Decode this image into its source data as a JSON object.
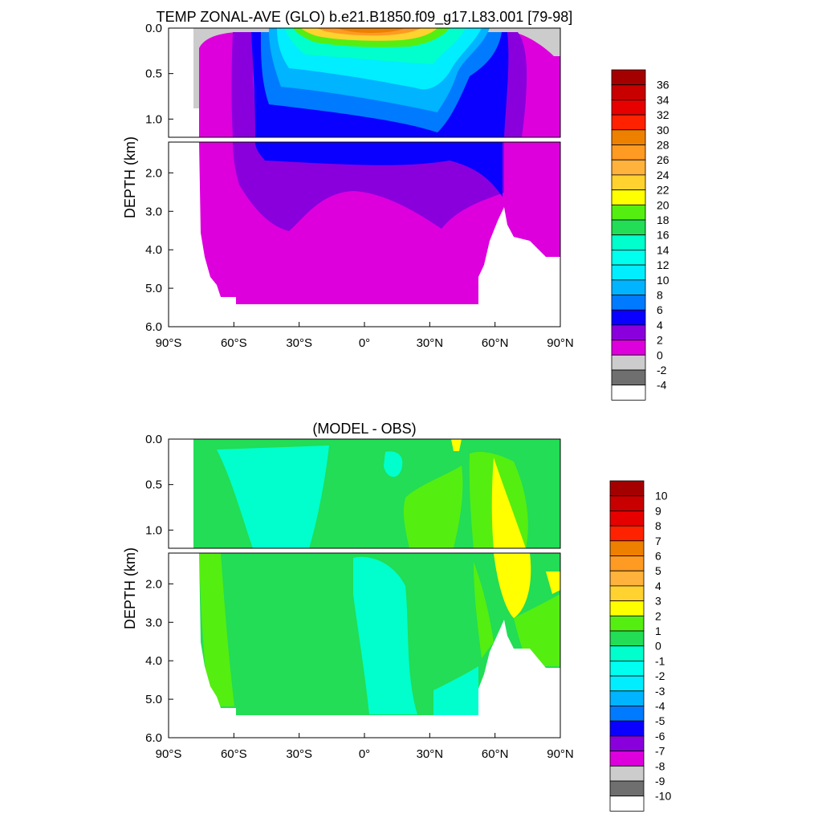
{
  "chart_data": [
    {
      "type": "heatmap",
      "title": "TEMP ZONAL-AVE (GLO) b.e21.B1850.f09_g17.L83.001 [79-98]",
      "ylabel": "DEPTH (km)",
      "xlim": [
        -90,
        90
      ],
      "ylim_upper_km": [
        0.0,
        1.2
      ],
      "ylim_lower_km": [
        1.2,
        6.0
      ],
      "x_ticks": [
        {
          "value": -90,
          "label": "90°S"
        },
        {
          "value": -60,
          "label": "60°S"
        },
        {
          "value": -30,
          "label": "30°S"
        },
        {
          "value": 0,
          "label": "0°"
        },
        {
          "value": 30,
          "label": "30°N"
        },
        {
          "value": 60,
          "label": "60°N"
        },
        {
          "value": 90,
          "label": "90°N"
        }
      ],
      "y_ticks_upper": [
        {
          "value": 0.0,
          "label": "0.0"
        },
        {
          "value": 0.5,
          "label": "0.5"
        },
        {
          "value": 1.0,
          "label": "1.0"
        }
      ],
      "y_ticks_lower": [
        {
          "value": 2.0,
          "label": "2.0"
        },
        {
          "value": 3.0,
          "label": "3.0"
        },
        {
          "value": 4.0,
          "label": "4.0"
        },
        {
          "value": 5.0,
          "label": "5.0"
        },
        {
          "value": 6.0,
          "label": "6.0"
        }
      ],
      "colorbar": {
        "labels": [
          "36",
          "34",
          "32",
          "30",
          "28",
          "26",
          "24",
          "22",
          "20",
          "18",
          "16",
          "14",
          "12",
          "10",
          "8",
          "6",
          "4",
          "2",
          "0",
          "-2",
          "-4"
        ],
        "colors": [
          "#a50000",
          "#c80000",
          "#e60000",
          "#ff2200",
          "#ee8000",
          "#ff9a22",
          "#ffb23c",
          "#ffd230",
          "#ffff00",
          "#55ee11",
          "#22dd55",
          "#00ffcc",
          "#00ffee",
          "#00eeff",
          "#00b4ff",
          "#007bff",
          "#0a00ff",
          "#8a00dd",
          "#dd00dd",
          "#cccccc",
          "#6f6f6f",
          "#ffffff"
        ]
      },
      "field_colors": {
        "warm_core": "#ee8000",
        "surface_28": "#ff9a22",
        "surface_24": "#ffd230",
        "surface_20": "#55ee11",
        "band_14": "#00ffcc",
        "band_12": "#00eeff",
        "band_10": "#00b4ff",
        "band_6": "#007bff",
        "band_4": "#0a00ff",
        "band_2": "#8a00dd",
        "deep_0": "#dd00dd",
        "ice": "#cccccc"
      }
    },
    {
      "type": "heatmap",
      "title": "(MODEL - OBS)",
      "ylabel": "DEPTH (km)",
      "xlim": [
        -90,
        90
      ],
      "ylim_upper_km": [
        0.0,
        1.2
      ],
      "ylim_lower_km": [
        1.2,
        6.0
      ],
      "x_ticks": [
        {
          "value": -90,
          "label": "90°S"
        },
        {
          "value": -60,
          "label": "60°S"
        },
        {
          "value": -30,
          "label": "30°S"
        },
        {
          "value": 0,
          "label": "0°"
        },
        {
          "value": 30,
          "label": "30°N"
        },
        {
          "value": 60,
          "label": "60°N"
        },
        {
          "value": 90,
          "label": "90°N"
        }
      ],
      "y_ticks_upper": [
        {
          "value": 0.0,
          "label": "0.0"
        },
        {
          "value": 0.5,
          "label": "0.5"
        },
        {
          "value": 1.0,
          "label": "1.0"
        }
      ],
      "y_ticks_lower": [
        {
          "value": 2.0,
          "label": "2.0"
        },
        {
          "value": 3.0,
          "label": "3.0"
        },
        {
          "value": 4.0,
          "label": "4.0"
        },
        {
          "value": 5.0,
          "label": "5.0"
        },
        {
          "value": 6.0,
          "label": "6.0"
        }
      ],
      "colorbar": {
        "labels": [
          "10",
          "9",
          "8",
          "7",
          "6",
          "5",
          "4",
          "3",
          "2",
          "1",
          "0",
          "-1",
          "-2",
          "-3",
          "-4",
          "-5",
          "-6",
          "-7",
          "-8",
          "-9",
          "-10"
        ],
        "colors": [
          "#a50000",
          "#c80000",
          "#e60000",
          "#ff2200",
          "#ee8000",
          "#ff9a22",
          "#ffb23c",
          "#ffd230",
          "#ffff00",
          "#55ee11",
          "#22dd55",
          "#00ffcc",
          "#00ffee",
          "#00eeff",
          "#00b4ff",
          "#007bff",
          "#0a00ff",
          "#8a00dd",
          "#dd00dd",
          "#cccccc",
          "#6f6f6f",
          "#ffffff"
        ]
      },
      "field_colors": {
        "diff_0_1": "#22dd55",
        "diff_m1_0": "#00ffcc",
        "diff_1_2": "#55ee11",
        "diff_2_3": "#ffff00"
      }
    }
  ]
}
